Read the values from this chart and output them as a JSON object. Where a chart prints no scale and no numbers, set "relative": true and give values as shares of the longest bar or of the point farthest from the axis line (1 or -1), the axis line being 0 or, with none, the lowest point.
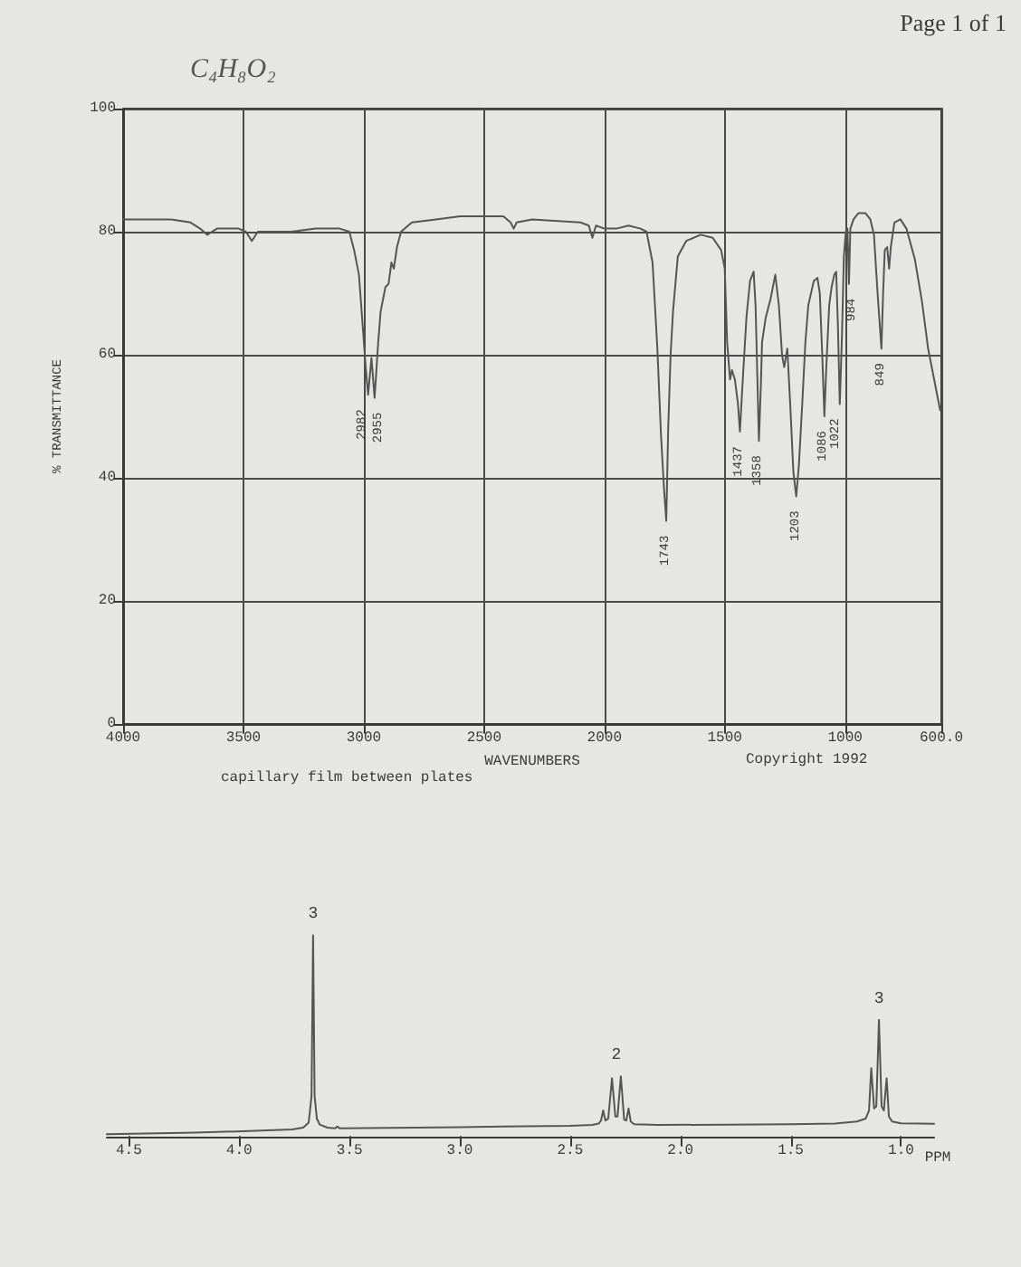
{
  "chart_data": [
    {
      "type": "line",
      "title": "C₄H₈O₂",
      "xlabel": "WAVENUMBERS",
      "ylabel": "% TRANSMITTANCE",
      "color": "#555555",
      "marker": "none",
      "grid": true,
      "x": [
        4000,
        3900,
        3800,
        3720,
        3680,
        3650,
        3610,
        3520,
        3490,
        3465,
        3440,
        3300,
        3200,
        3100,
        3060,
        3040,
        3020,
        3005,
        2992,
        2982,
        2968,
        2955,
        2940,
        2930,
        2910,
        2897,
        2885,
        2875,
        2862,
        2845,
        2800,
        2700,
        2600,
        2420,
        2390,
        2377,
        2365,
        2300,
        2100,
        2065,
        2050,
        2035,
        2000,
        1950,
        1900,
        1850,
        1825,
        1800,
        1780,
        1765,
        1752,
        1743,
        1735,
        1725,
        1715,
        1695,
        1660,
        1600,
        1550,
        1515,
        1500,
        1490,
        1478,
        1470,
        1458,
        1445,
        1437,
        1425,
        1410,
        1395,
        1380,
        1372,
        1365,
        1358,
        1350,
        1345,
        1330,
        1310,
        1290,
        1275,
        1262,
        1253,
        1240,
        1228,
        1215,
        1203,
        1192,
        1178,
        1165,
        1153,
        1130,
        1115,
        1105,
        1095,
        1086,
        1078,
        1066,
        1056,
        1045,
        1037,
        1030,
        1022,
        1013,
        1005,
        997,
        990,
        984,
        978,
        965,
        945,
        915,
        895,
        880,
        865,
        849,
        842,
        835,
        825,
        817,
        810,
        795,
        770,
        745,
        710,
        680,
        655,
        620,
        605
      ],
      "values": [
        82,
        82,
        82,
        81.5,
        80.5,
        79.5,
        80.5,
        80.5,
        80,
        78.5,
        80,
        80,
        80.5,
        80.5,
        80,
        77,
        73,
        65,
        58,
        53.5,
        59.5,
        53,
        62,
        67,
        71,
        71.5,
        75,
        74,
        77.5,
        80,
        81.5,
        82,
        82.5,
        82.5,
        81.5,
        80.5,
        81.5,
        82,
        81.5,
        81,
        79,
        81,
        80.5,
        80.5,
        81,
        80.5,
        80,
        75,
        61,
        47,
        38,
        33,
        48,
        60,
        67,
        76,
        78.5,
        79.5,
        79,
        77,
        74,
        62,
        56,
        57.5,
        56,
        52,
        47.5,
        56,
        66,
        72,
        73.5,
        68,
        57,
        46,
        55,
        62,
        66,
        69,
        73,
        68,
        60,
        58,
        61,
        52,
        41,
        37,
        42,
        52,
        62,
        68,
        72,
        72.5,
        70,
        60,
        50,
        58,
        68,
        71,
        73,
        73.5,
        65,
        52,
        63,
        76,
        80,
        80.5,
        71.5,
        80.5,
        82,
        83,
        83,
        82,
        79.5,
        70,
        61,
        70,
        77,
        77.5,
        74,
        77.5,
        81.5,
        82,
        80.5,
        75.5,
        68.5,
        61,
        54,
        51
      ],
      "xlim": [
        4000,
        600
      ],
      "xticks": [
        4000,
        3500,
        3000,
        2500,
        2000,
        1500,
        1000,
        {
          "value": 600,
          "label": "600.0"
        }
      ],
      "ylim": [
        0,
        100
      ],
      "yticks": [
        0,
        20,
        40,
        60,
        80,
        100
      ],
      "annotations": [
        "Page 1 of 1",
        "capillary film between plates",
        "Copyright 1992",
        {
          "text": "2982",
          "x": 2982,
          "y": 53.5
        },
        {
          "text": "2955",
          "x": 2955,
          "y": 53
        },
        {
          "text": "1743",
          "x": 1743,
          "y": 33
        },
        {
          "text": "1437",
          "x": 1437,
          "y": 47.5
        },
        {
          "text": "1358",
          "x": 1358,
          "y": 46
        },
        {
          "text": "1203",
          "x": 1203,
          "y": 37
        },
        {
          "text": "1086",
          "x": 1086,
          "y": 50
        },
        {
          "text": "1022",
          "x": 1022,
          "y": 52
        },
        {
          "text": "984",
          "x": 984,
          "y": 71.5
        },
        {
          "text": "849",
          "x": 849,
          "y": 61
        }
      ]
    },
    {
      "type": "line",
      "relative": true,
      "xlabel": "PPM",
      "color": "#555555",
      "marker": "none",
      "x": [
        4.6,
        4.2,
        3.9,
        3.76,
        3.71,
        3.685,
        3.672,
        3.665,
        3.658,
        3.648,
        3.635,
        3.6,
        3.565,
        3.555,
        3.545,
        3.2,
        2.8,
        2.5,
        2.4,
        2.37,
        2.36,
        2.35,
        2.34,
        2.327,
        2.31,
        2.295,
        2.285,
        2.27,
        2.255,
        2.245,
        2.235,
        2.225,
        2.21,
        2.1,
        1.8,
        1.5,
        1.3,
        1.2,
        1.16,
        1.145,
        1.135,
        1.122,
        1.112,
        1.1,
        1.088,
        1.078,
        1.065,
        1.055,
        1.04,
        1.0,
        0.85
      ],
      "values": [
        0.012,
        0.02,
        0.03,
        0.036,
        0.045,
        0.07,
        0.2,
        1,
        0.2,
        0.09,
        0.06,
        0.045,
        0.042,
        0.05,
        0.042,
        0.045,
        0.05,
        0.054,
        0.058,
        0.065,
        0.08,
        0.13,
        0.08,
        0.09,
        0.29,
        0.1,
        0.1,
        0.3,
        0.085,
        0.08,
        0.14,
        0.075,
        0.062,
        0.058,
        0.06,
        0.062,
        0.065,
        0.075,
        0.09,
        0.13,
        0.34,
        0.14,
        0.15,
        0.58,
        0.15,
        0.13,
        0.29,
        0.1,
        0.075,
        0.066,
        0.064
      ],
      "xlim": [
        4.6,
        0.85
      ],
      "xticks": [
        4.5,
        {
          "value": 4,
          "label": "4.0"
        },
        3.5,
        {
          "value": 3,
          "label": "3.0"
        },
        2.5,
        {
          "value": 2,
          "label": "2.0"
        },
        1.5,
        {
          "value": 1,
          "label": "1.0"
        }
      ],
      "annotations": [
        {
          "text": "3",
          "x": 3.665,
          "y": 1
        },
        {
          "text": "2",
          "x": 2.29,
          "y": 0.3
        },
        {
          "text": "3",
          "x": 1.1,
          "y": 0.58
        }
      ]
    }
  ]
}
